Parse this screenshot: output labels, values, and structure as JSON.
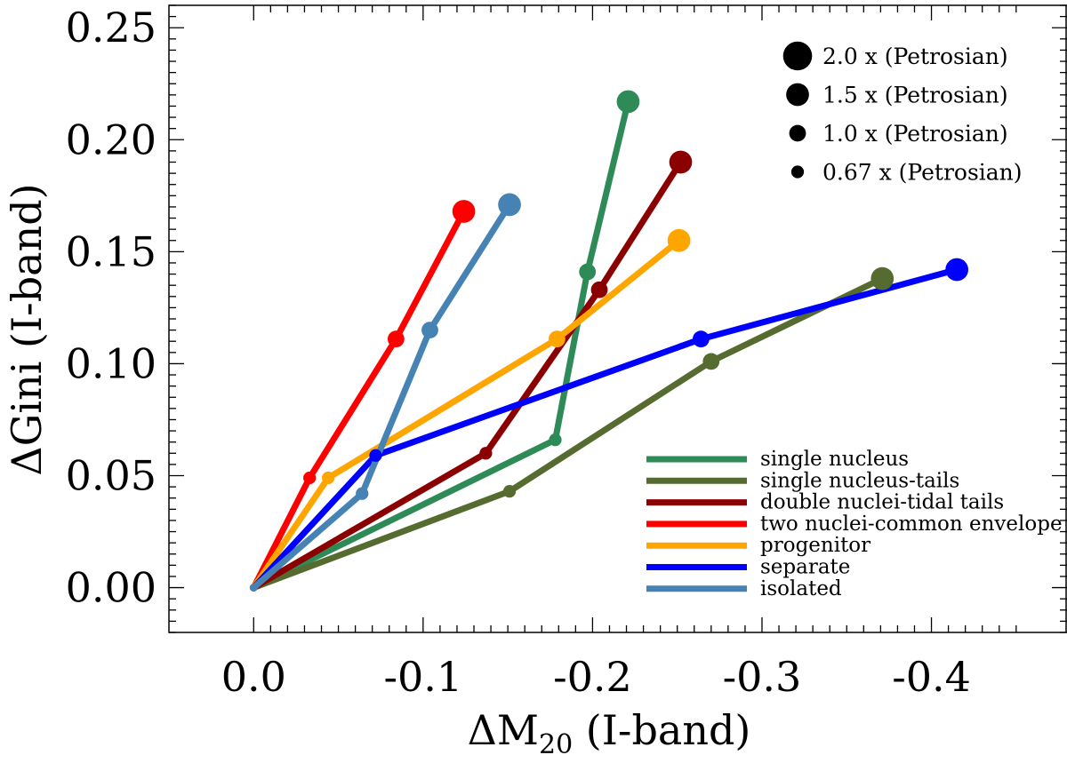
{
  "chart_data": {
    "type": "line",
    "xlabel": "ΔM20 (I-band)",
    "xlabel_main": "ΔM",
    "xlabel_sub": "20",
    "xlabel_tail": " (I-band)",
    "ylabel": "ΔGini (I-band)",
    "xlim": [
      0.05,
      -0.48
    ],
    "ylim": [
      -0.02,
      0.26
    ],
    "x_reversed": true,
    "x_ticks": [
      0.0,
      -0.1,
      -0.2,
      -0.3,
      -0.4
    ],
    "x_tick_labels": [
      "0.0",
      "-0.1",
      "-0.2",
      "-0.3",
      "-0.4"
    ],
    "y_ticks": [
      0.0,
      0.05,
      0.1,
      0.15,
      0.2,
      0.25
    ],
    "y_tick_labels": [
      "0.00",
      "0.05",
      "0.10",
      "0.15",
      "0.20",
      "0.25"
    ],
    "grid": false,
    "legend_position": "bottom-right",
    "size_legend_position": "top-right",
    "size_legend": [
      {
        "label": "2.0 x (Petrosian)",
        "scale": 2.0
      },
      {
        "label": "1.5 x (Petrosian)",
        "scale": 1.5
      },
      {
        "label": "1.0 x (Petrosian)",
        "scale": 1.0
      },
      {
        "label": "0.67 x (Petrosian)",
        "scale": 0.67
      }
    ],
    "aperture_scales": [
      0.67,
      1.0,
      1.5,
      2.0
    ],
    "series": [
      {
        "name": "single nucleus",
        "color": "#2e8b57",
        "points": [
          [
            0.0,
            0.0
          ],
          [
            -0.178,
            0.066
          ],
          [
            -0.197,
            0.141
          ],
          [
            -0.221,
            0.217
          ]
        ]
      },
      {
        "name": "single nucleus-tails",
        "color": "#556b2f",
        "points": [
          [
            0.0,
            0.0
          ],
          [
            -0.151,
            0.043
          ],
          [
            -0.27,
            0.101
          ],
          [
            -0.371,
            0.138
          ]
        ]
      },
      {
        "name": "double nuclei-tidal tails",
        "color": "#8b0000",
        "points": [
          [
            0.0,
            0.0
          ],
          [
            -0.137,
            0.06
          ],
          [
            -0.204,
            0.133
          ],
          [
            -0.252,
            0.19
          ]
        ]
      },
      {
        "name": "two nuclei-common envelope",
        "color": "#ff0000",
        "points": [
          [
            0.0,
            0.0
          ],
          [
            -0.033,
            0.049
          ],
          [
            -0.084,
            0.111
          ],
          [
            -0.124,
            0.168
          ]
        ]
      },
      {
        "name": "progenitor",
        "color": "#ffa500",
        "points": [
          [
            0.0,
            0.0
          ],
          [
            -0.044,
            0.049
          ],
          [
            -0.179,
            0.111
          ],
          [
            -0.251,
            0.155
          ]
        ]
      },
      {
        "name": "separate",
        "color": "#0000ff",
        "points": [
          [
            0.0,
            0.0
          ],
          [
            -0.072,
            0.059
          ],
          [
            -0.264,
            0.111
          ],
          [
            -0.415,
            0.142
          ]
        ]
      },
      {
        "name": "isolated",
        "color": "#4682b4",
        "points": [
          [
            0.0,
            0.0
          ],
          [
            -0.064,
            0.042
          ],
          [
            -0.104,
            0.115
          ],
          [
            -0.151,
            0.171
          ]
        ]
      }
    ]
  }
}
